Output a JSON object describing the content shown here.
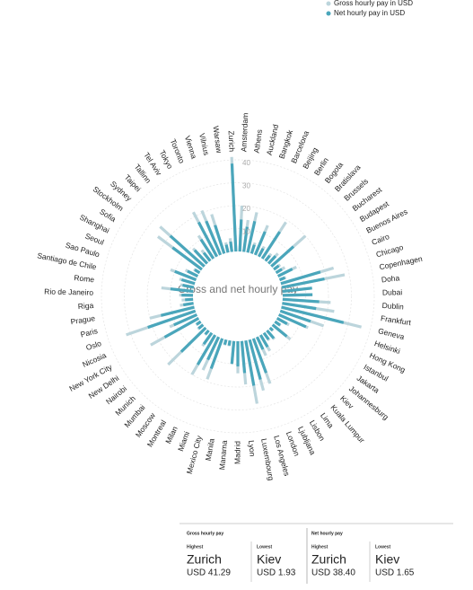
{
  "chart_data": {
    "type": "radial_bar",
    "legend_position": "top-right",
    "center_label": "Gross and net hourly pay",
    "categories": [
      "Amsterdam",
      "Athens",
      "Auckland",
      "Bangkok",
      "Barcelona",
      "Beijing",
      "Berlin",
      "Bogota",
      "Bratislava",
      "Brussels",
      "Bucharest",
      "Budapest",
      "Buenos Aires",
      "Cairo",
      "Chicago",
      "Copenhagen",
      "Doha",
      "Dubai",
      "Dublin",
      "Frankfurt",
      "Geneva",
      "Helsinki",
      "Hong Kong",
      "Istanbul",
      "Jakarta",
      "Johannesburg",
      "Kiev",
      "Kuala Lumpur",
      "Lima",
      "Lisbon",
      "Ljubljana",
      "London",
      "Los Angeles",
      "Luxembourg",
      "Lyon",
      "Madrid",
      "Manama",
      "Manila",
      "Mexico City",
      "Miami",
      "Milan",
      "Montreal",
      "Moscow",
      "Mumbai",
      "Munich",
      "Nairobi",
      "New Delhi",
      "New York City",
      "Nicosia",
      "Oslo",
      "Paris",
      "Prague",
      "Riga",
      "Rio de Janeiro",
      "Rome",
      "Santiago de Chile",
      "Sao Paulo",
      "Seoul",
      "Shanghai",
      "Sofia",
      "Stockholm",
      "Sydney",
      "Taipei",
      "Tallinn",
      "Tel Aviv",
      "Tokyo",
      "Toronto",
      "Vienna",
      "Vilnius",
      "Warsaw",
      "Zurich"
    ],
    "series": [
      {
        "name": "Gross hourly pay in USD",
        "color": "#bcd5dc",
        "values": [
          20,
          14,
          18,
          5,
          14,
          5,
          19,
          4,
          6,
          20,
          3.5,
          4.5,
          9,
          3,
          24,
          28,
          13,
          13,
          21,
          23,
          36,
          20,
          14,
          6,
          3,
          10,
          1.93,
          5,
          4,
          8,
          9,
          21,
          23,
          28,
          19,
          14,
          10,
          2.5,
          2.5,
          19,
          16,
          20,
          7,
          2.5,
          23,
          3,
          2.5,
          24,
          13,
          32,
          20,
          6,
          5,
          6,
          14,
          6,
          7,
          12,
          6,
          3,
          24,
          26,
          9,
          6,
          12,
          22,
          21,
          18,
          4.5,
          6,
          41.29
        ]
      },
      {
        "name": "Net hourly pay in USD",
        "color": "#4aa6bb",
        "values": [
          14,
          11,
          14,
          4,
          11,
          4,
          14,
          3,
          4.5,
          13,
          2.7,
          3,
          7,
          2.5,
          18,
          19,
          13,
          13,
          16,
          15,
          28,
          14,
          13,
          5,
          2.7,
          8,
          1.65,
          4.5,
          3.5,
          6,
          6,
          16,
          18,
          20,
          14,
          11,
          10,
          2.2,
          2.2,
          14,
          11,
          15,
          6,
          2.2,
          15,
          2.5,
          2.2,
          17,
          11,
          22,
          15,
          4.5,
          3.5,
          5,
          10,
          5,
          6,
          10,
          5,
          2.5,
          16,
          20,
          8,
          4.5,
          10,
          17,
          16,
          13,
          3.5,
          4.5,
          38.4
        ]
      }
    ],
    "ylim": [
      0,
      40
    ],
    "yticks": [
      10,
      20,
      30,
      40
    ],
    "grid": true
  },
  "panel": {
    "gross": {
      "title": "Gross hourly pay",
      "highest": {
        "label": "Highest",
        "city": "Zurich",
        "amount": "USD 41.29"
      },
      "lowest": {
        "label": "Lowest",
        "city": "Kiev",
        "amount": "USD 1.93"
      }
    },
    "net": {
      "title": "Net hourly pay",
      "highest": {
        "label": "Highest",
        "city": "Zurich",
        "amount": "USD 38.40"
      },
      "lowest": {
        "label": "Lowest",
        "city": "Kiev",
        "amount": "USD 1.65"
      }
    }
  }
}
